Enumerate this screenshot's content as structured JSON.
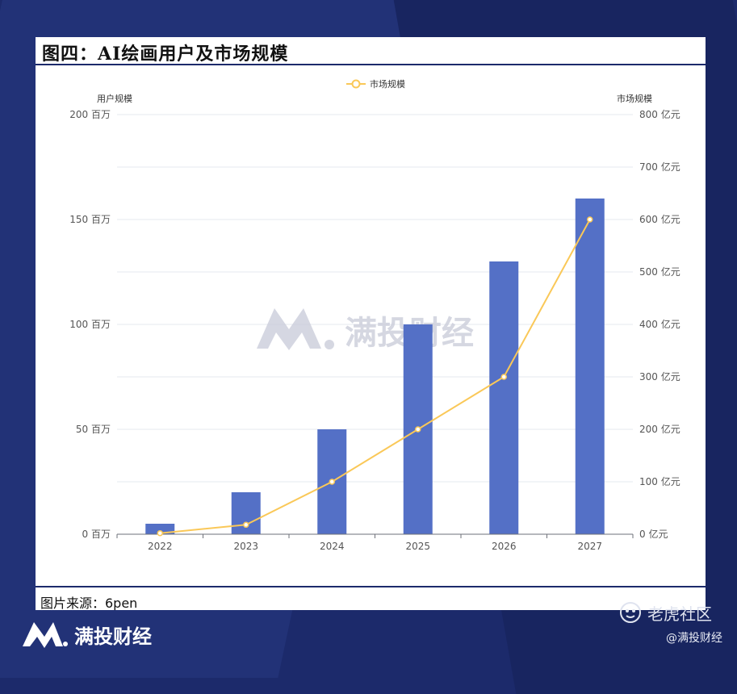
{
  "header": {
    "title": "图四：AI绘画用户及市场规模"
  },
  "footer": {
    "source": "图片来源：6pen"
  },
  "watermark": {
    "text": "满投财经"
  },
  "brand": {
    "name": "满投财经",
    "logo_icon": "m-logo-icon"
  },
  "community": {
    "name": "老虎社区",
    "handle": "@满投财经",
    "icon": "tiger-icon"
  },
  "colors": {
    "bar": "#5470c6",
    "line": "#fac858",
    "background": "#1c2a6b"
  },
  "chart_data": {
    "type": "bar",
    "categories": [
      "2022",
      "2023",
      "2024",
      "2025",
      "2026",
      "2027"
    ],
    "series": [
      {
        "name": "",
        "kind": "bar",
        "axis": "left",
        "values": [
          5,
          20,
          50,
          100,
          130,
          160
        ]
      },
      {
        "name": "市场规模",
        "kind": "line",
        "axis": "right",
        "values": [
          2,
          18,
          100,
          200,
          300,
          600
        ]
      }
    ],
    "y_left": {
      "label": "用户规模",
      "range": [
        0,
        200
      ],
      "ticks": [
        0,
        50,
        100,
        150,
        200
      ],
      "unit": "百万"
    },
    "y_right": {
      "label": "市场规模",
      "range": [
        0,
        800
      ],
      "ticks": [
        0,
        100,
        200,
        300,
        400,
        500,
        600,
        700,
        800
      ],
      "unit": "亿元"
    },
    "legend": {
      "entries": [
        "市场规模"
      ],
      "position": "top-center"
    },
    "grid": true
  }
}
